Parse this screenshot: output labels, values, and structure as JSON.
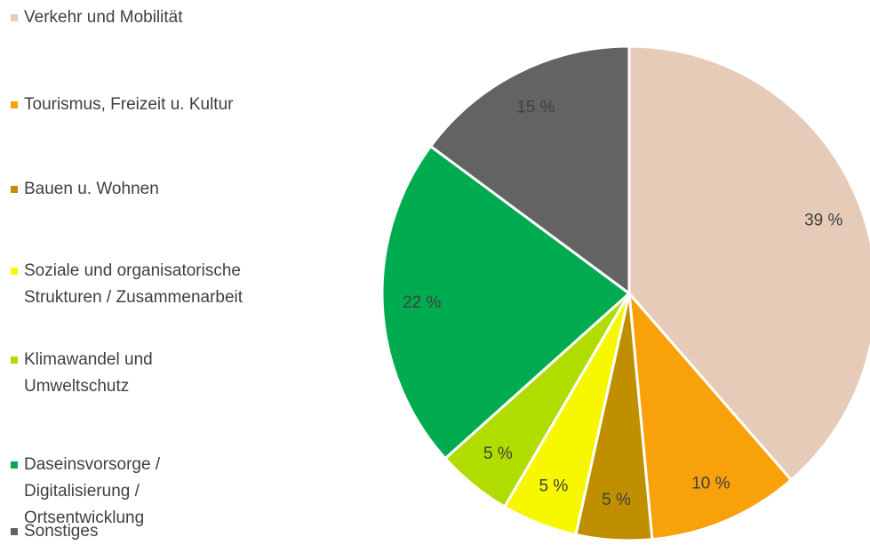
{
  "chart_data": {
    "type": "pie",
    "categories": [
      "Verkehr und Mobilität",
      "Tourismus, Freizeit u. Kultur",
      "Bauen u. Wohnen",
      "Soziale und organisatorische Strukturen / Zusammenarbeit",
      "Klimawandel und Umweltschutz",
      "Daseinsvorsorge / Digitalisierung / Ortsentwicklung",
      "Sonstiges"
    ],
    "values": [
      39,
      10,
      5,
      5,
      5,
      22,
      15
    ],
    "value_labels": [
      "39 %",
      "10 %",
      "5 %",
      "5 %",
      "5 %",
      "22 %",
      "15 %"
    ],
    "colors": [
      "#e6cbb8",
      "#f9a10a",
      "#bf8f00",
      "#f7f700",
      "#b1dc00",
      "#00ac4f",
      "#636363"
    ],
    "legend": "left"
  }
}
